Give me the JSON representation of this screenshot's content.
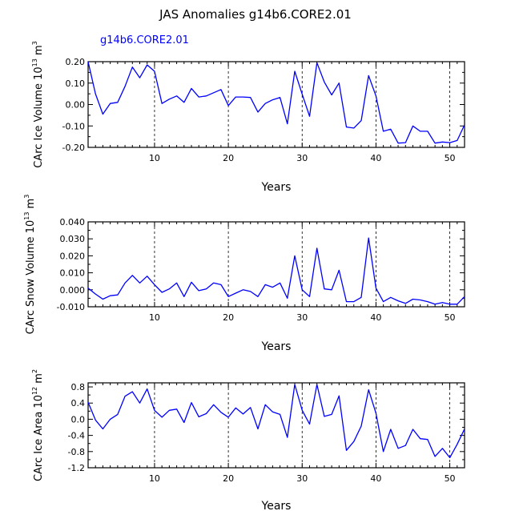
{
  "figure_title": "JAS Anomalies g14b6.CORE2.01",
  "legend_label": "g14b6.CORE2.01",
  "line_color": "#0000ff",
  "chart_data": [
    {
      "type": "line",
      "ylabel_parts": [
        "CArc Ice Volume 10",
        "13",
        " m",
        "3"
      ],
      "xlabel": "Years",
      "xlim": [
        1,
        52
      ],
      "ylim": [
        -0.2,
        0.2
      ],
      "x_ticks": [
        10,
        20,
        30,
        40,
        50
      ],
      "y_ticks": [
        "0.20",
        "0.10",
        "0.00",
        "-0.10",
        "-0.20"
      ],
      "y_tick_values": [
        0.2,
        0.1,
        0.0,
        -0.1,
        -0.2
      ],
      "vlines": [
        10,
        20,
        30,
        40,
        50
      ],
      "x": [
        1,
        2,
        3,
        4,
        5,
        6,
        7,
        8,
        9,
        10,
        11,
        12,
        13,
        14,
        15,
        16,
        17,
        18,
        19,
        20,
        21,
        22,
        23,
        24,
        25,
        26,
        27,
        28,
        29,
        30,
        31,
        32,
        33,
        34,
        35,
        36,
        37,
        38,
        39,
        40,
        41,
        42,
        43,
        44,
        45,
        46,
        47,
        48,
        49,
        50,
        51,
        52
      ],
      "values": [
        0.2,
        0.05,
        -0.045,
        0.005,
        0.01,
        0.085,
        0.175,
        0.125,
        0.185,
        0.155,
        0.005,
        0.025,
        0.04,
        0.01,
        0.075,
        0.035,
        0.04,
        0.055,
        0.07,
        -0.005,
        0.035,
        0.035,
        0.033,
        -0.035,
        0.005,
        0.022,
        0.033,
        -0.09,
        0.155,
        0.048,
        -0.055,
        0.195,
        0.105,
        0.045,
        0.1,
        -0.105,
        -0.11,
        -0.075,
        0.135,
        0.04,
        -0.125,
        -0.115,
        -0.18,
        -0.178,
        -0.1,
        -0.125,
        -0.125,
        -0.18,
        -0.175,
        -0.178,
        -0.168,
        -0.095
      ]
    },
    {
      "type": "line",
      "ylabel_parts": [
        "CArc Snow Volume 10",
        "13",
        " m",
        "3"
      ],
      "xlabel": "Years",
      "xlim": [
        1,
        52
      ],
      "ylim": [
        -0.01,
        0.04
      ],
      "x_ticks": [
        10,
        20,
        30,
        40,
        50
      ],
      "y_ticks": [
        "0.040",
        "0.030",
        "0.020",
        "0.010",
        "0.000",
        "-0.010"
      ],
      "y_tick_values": [
        0.04,
        0.03,
        0.02,
        0.01,
        0.0,
        -0.01
      ],
      "vlines": [
        10,
        20,
        30,
        40,
        50
      ],
      "x": [
        1,
        2,
        3,
        4,
        5,
        6,
        7,
        8,
        9,
        10,
        11,
        12,
        13,
        14,
        15,
        16,
        17,
        18,
        19,
        20,
        21,
        22,
        23,
        24,
        25,
        26,
        27,
        28,
        29,
        30,
        31,
        32,
        33,
        34,
        35,
        36,
        37,
        38,
        39,
        40,
        41,
        42,
        43,
        44,
        45,
        46,
        47,
        48,
        49,
        50,
        51,
        52
      ],
      "values": [
        0.001,
        -0.0025,
        -0.0055,
        -0.0035,
        -0.003,
        0.004,
        0.0085,
        0.004,
        0.008,
        0.003,
        -0.0015,
        0.0005,
        0.004,
        -0.004,
        0.0045,
        -0.0005,
        0.0005,
        0.004,
        0.003,
        -0.004,
        -0.002,
        0.0,
        -0.001,
        -0.004,
        0.003,
        0.0015,
        0.004,
        -0.005,
        0.02,
        0.0,
        -0.004,
        0.0245,
        0.0005,
        0.0,
        0.0115,
        -0.007,
        -0.007,
        -0.0045,
        0.0305,
        0.001,
        -0.007,
        -0.0045,
        -0.0065,
        -0.008,
        -0.0055,
        -0.006,
        -0.007,
        -0.0085,
        -0.0075,
        -0.0085,
        -0.0085,
        -0.004
      ]
    },
    {
      "type": "line",
      "ylabel_parts": [
        "CArc Ice Area 10",
        "12",
        " m",
        "2"
      ],
      "xlabel": "Years",
      "xlim": [
        1,
        52
      ],
      "ylim": [
        -1.2,
        0.9
      ],
      "x_ticks": [
        10,
        20,
        30,
        40,
        50
      ],
      "y_ticks": [
        "0.8",
        "0.4",
        "0.0",
        "-0.4",
        "-0.8",
        "-1.2"
      ],
      "y_tick_values": [
        0.8,
        0.4,
        0.0,
        -0.4,
        -0.8,
        -1.2
      ],
      "vlines": [
        10,
        20,
        30,
        40,
        50
      ],
      "x": [
        1,
        2,
        3,
        4,
        5,
        6,
        7,
        8,
        9,
        10,
        11,
        12,
        13,
        14,
        15,
        16,
        17,
        18,
        19,
        20,
        21,
        22,
        23,
        24,
        25,
        26,
        27,
        28,
        29,
        30,
        31,
        32,
        33,
        34,
        35,
        36,
        37,
        38,
        39,
        40,
        41,
        42,
        43,
        44,
        45,
        46,
        47,
        48,
        49,
        50,
        51,
        52
      ],
      "values": [
        0.42,
        -0.02,
        -0.24,
        0.0,
        0.12,
        0.57,
        0.68,
        0.4,
        0.75,
        0.22,
        0.05,
        0.22,
        0.25,
        -0.08,
        0.41,
        0.06,
        0.14,
        0.36,
        0.17,
        0.05,
        0.28,
        0.13,
        0.29,
        -0.24,
        0.36,
        0.18,
        0.12,
        -0.45,
        0.86,
        0.22,
        -0.12,
        0.86,
        0.07,
        0.12,
        0.58,
        -0.77,
        -0.55,
        -0.17,
        0.73,
        0.15,
        -0.8,
        -0.25,
        -0.72,
        -0.65,
        -0.25,
        -0.48,
        -0.5,
        -0.92,
        -0.72,
        -0.95,
        -0.62,
        -0.24
      ]
    }
  ]
}
